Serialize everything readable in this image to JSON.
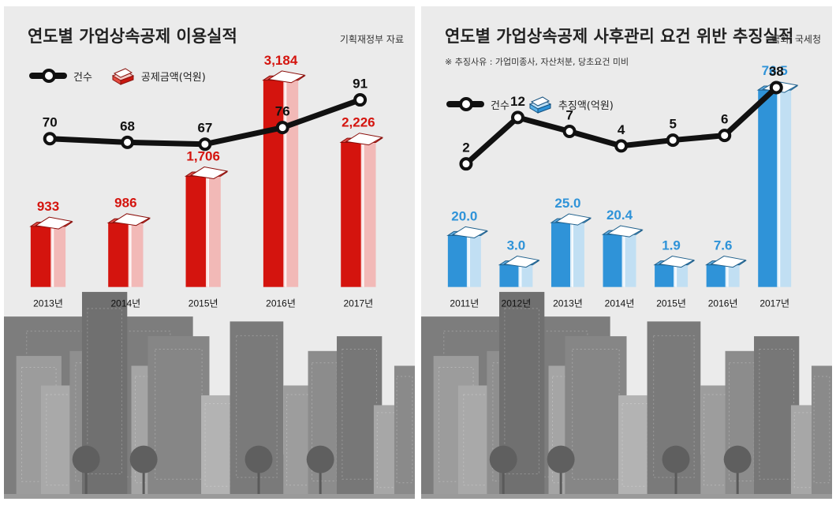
{
  "chart_data": [
    {
      "type": "bar",
      "title": "연도별 가업상속공제 이용실적",
      "source": "기획재정부 자료",
      "categories": [
        "2013년",
        "2014년",
        "2015년",
        "2016년",
        "2017년"
      ],
      "series": [
        {
          "name": "공제금액(억원)",
          "chart": "bar",
          "color": "#d4140e",
          "values": [
            933,
            986,
            1706,
            3184,
            2226
          ],
          "labels": [
            "933",
            "986",
            "1,706",
            "3,184",
            "2,226"
          ]
        },
        {
          "name": "건수",
          "chart": "line",
          "color": "#111111",
          "values": [
            70,
            68,
            67,
            76,
            91
          ],
          "labels": [
            "70",
            "68",
            "67",
            "76",
            "91"
          ]
        }
      ],
      "legend": "top-left",
      "grid": false
    },
    {
      "type": "bar",
      "title": "연도별 가업상속공제 사후관리 요건 위반 추징실적",
      "source": "국회, 국세청",
      "note": "※ 추징사유 : 가업미종사, 자산처분, 당초요건 미비",
      "categories": [
        "2011년",
        "2012년",
        "2013년",
        "2014년",
        "2015년",
        "2016년",
        "2017년"
      ],
      "series": [
        {
          "name": "추징액(억원)",
          "chart": "bar",
          "color": "#2f93d8",
          "values": [
            20.0,
            3.0,
            25.0,
            20.4,
            1.9,
            7.6,
            76.5
          ],
          "labels": [
            "20.0",
            "3.0",
            "25.0",
            "20.4",
            "1.9",
            "7.6",
            "76.5"
          ]
        },
        {
          "name": "건수",
          "chart": "line",
          "color": "#111111",
          "values": [
            2,
            12,
            7,
            4,
            5,
            6,
            38
          ],
          "labels": [
            "2",
            "12",
            "7",
            "4",
            "5",
            "6",
            "38"
          ]
        }
      ],
      "legend": "top-left",
      "grid": false
    }
  ],
  "legend_labels": {
    "left": {
      "count": "건수",
      "amount": "공제금액(억원)"
    },
    "right": {
      "count": "건수",
      "amount": "추징액(억원)"
    }
  },
  "colors": {
    "left_bar": "#d4140e",
    "right_bar": "#2f93d8",
    "line": "#111111",
    "city": "#8a8a8a"
  },
  "icons": [
    "money-stack-icon",
    "city-skyline-icon"
  ]
}
